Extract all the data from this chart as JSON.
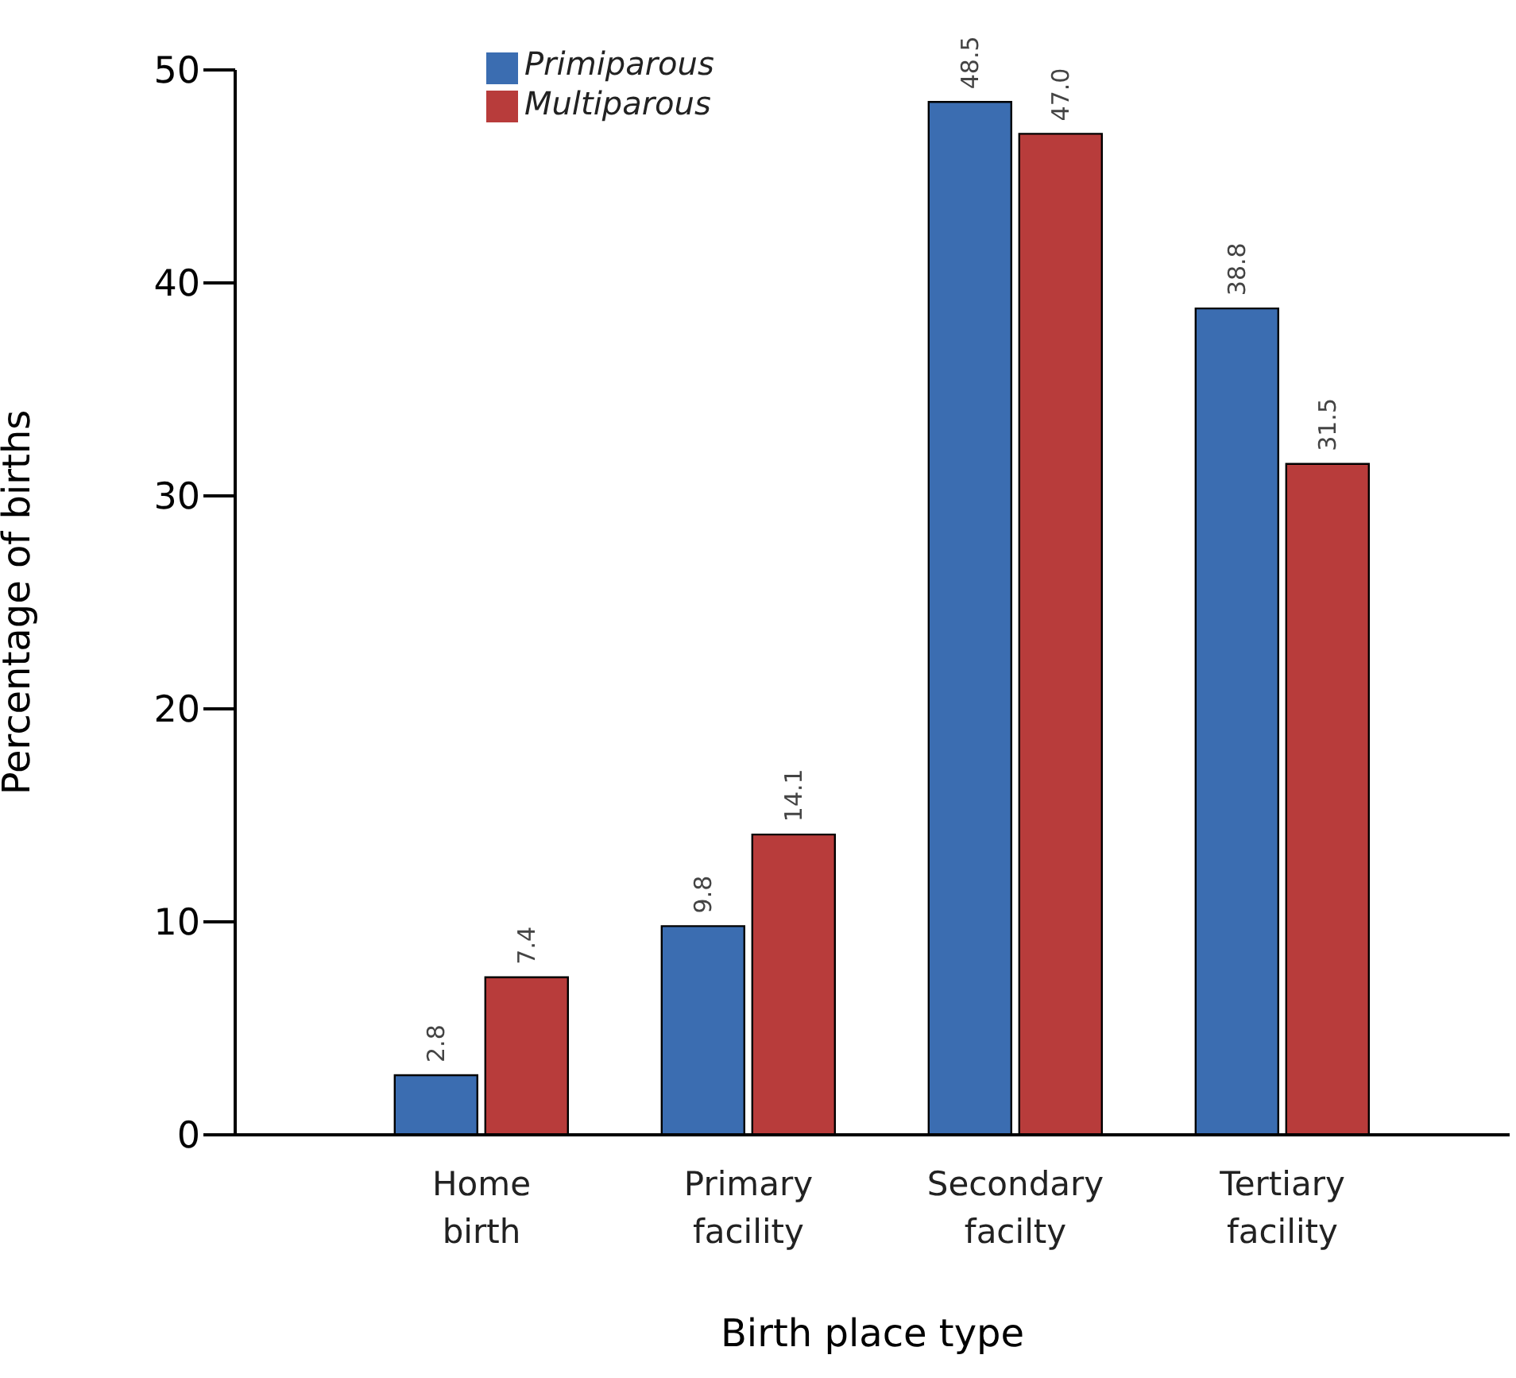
{
  "chart_data": {
    "type": "bar",
    "xlabel": "Birth place type",
    "ylabel": "Percentage of births",
    "categories": [
      "Home birth",
      "Primary facility",
      "Secondary facilty",
      "Tertiary facility"
    ],
    "series": [
      {
        "name": "Primiparous",
        "color": "#3b6db1",
        "values": [
          2.8,
          9.8,
          48.5,
          38.8
        ],
        "value_labels": [
          "2.8",
          "9.8",
          "48.5",
          "38.8"
        ]
      },
      {
        "name": "Multiparous",
        "color": "#b83c3b",
        "values": [
          7.4,
          14.1,
          47.0,
          31.5
        ],
        "value_labels": [
          "7.4",
          "14.1",
          "47.0",
          "31.5"
        ]
      }
    ],
    "ylim": [
      0,
      50
    ],
    "yticks": [
      0,
      10,
      20,
      30,
      40,
      50
    ],
    "grid": false,
    "legend": "top left"
  }
}
